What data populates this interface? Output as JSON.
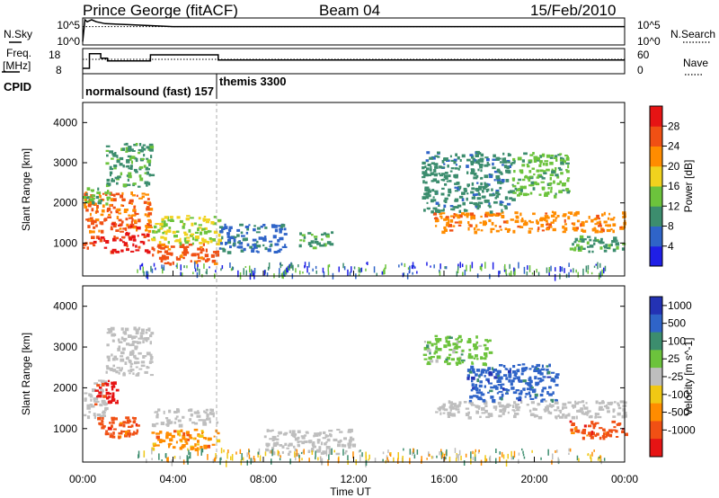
{
  "header": {
    "station": "Prince George (fitACF)",
    "beam": "Beam 04",
    "date": "15/Feb/2010"
  },
  "nsky_panel": {
    "label": "N.Sky",
    "left_ticks": [
      "10^5",
      "10^0"
    ],
    "right_ticks": [
      "10^5",
      "10^0"
    ],
    "right_label": "N.Search"
  },
  "freq_panel": {
    "label_line1": "Freq.",
    "label_line2": "[MHz]",
    "left_ticks": [
      "18",
      "8"
    ],
    "right_ticks": [
      "60",
      "0"
    ],
    "right_label": "Nave"
  },
  "cpid_panel": {
    "label": "CPID",
    "programs": [
      {
        "name": "normalsound (fast) 157",
        "start_hour": 0.0,
        "end_hour": 6.0
      },
      {
        "name": "themis 3300",
        "start_hour": 6.0,
        "end_hour": 24.0
      }
    ]
  },
  "x_axis": {
    "label": "Time UT",
    "ticks": [
      "00:00",
      "04:00",
      "08:00",
      "12:00",
      "16:00",
      "20:00",
      "00:00"
    ]
  },
  "y_axis": {
    "label": "Slant Range [km]",
    "ticks": [
      "1000",
      "2000",
      "3000",
      "4000"
    ]
  },
  "power_colorbar": {
    "label": "Power [dB]",
    "ticks": [
      "4",
      "8",
      "12",
      "16",
      "20",
      "24",
      "28"
    ],
    "colors": [
      "#1f1fe6",
      "#2f64c8",
      "#3c8d6e",
      "#6cc33c",
      "#f0d21e",
      "#ff8c00",
      "#f05014",
      "#e61414"
    ]
  },
  "velocity_colorbar": {
    "label": "Velocity [m s^-1]",
    "ticks": [
      "1000",
      "500",
      "100",
      "25",
      "-25",
      "-100",
      "-500",
      "-1000"
    ],
    "colors": [
      "#2332b4",
      "#2f64c8",
      "#3c8d6e",
      "#6cc33c",
      "#bebebe",
      "#f0c814",
      "#ff8c00",
      "#f05014",
      "#e61414"
    ]
  },
  "chart_data": [
    {
      "type": "line",
      "title": "N.Sky / N.Search",
      "series": [
        {
          "name": "N.Sky",
          "x": [
            0.0,
            0.1,
            0.2,
            0.4,
            0.6,
            1.0,
            2.0,
            3.0,
            4.0,
            5.0,
            6.0,
            8.0,
            10.0,
            12.0,
            14.0,
            16.0,
            18.0,
            20.0,
            22.0,
            24.0
          ],
          "y": [
            0.5,
            5.0,
            4.6,
            5.0,
            4.6,
            4.2,
            4.0,
            3.8,
            3.6,
            3.6,
            3.6,
            3.6,
            3.6,
            3.6,
            3.6,
            3.6,
            3.6,
            3.6,
            3.6,
            3.6
          ]
        },
        {
          "name": "N.Search",
          "x": [
            0.0,
            24.0
          ],
          "y": [
            3.6,
            3.6
          ]
        }
      ]
    },
    {
      "type": "line",
      "title": "Freq. [MHz] / Nave",
      "ylim": [
        8,
        18
      ],
      "series": [
        {
          "name": "Freq.",
          "x": [
            0.0,
            0.3,
            0.3,
            0.8,
            0.8,
            1.1,
            1.1,
            3.0,
            3.0,
            6.0,
            6.0,
            24.0
          ],
          "y": [
            10.0,
            10.0,
            16.5,
            16.5,
            14.5,
            14.5,
            13.3,
            13.3,
            16.0,
            16.0,
            13.7,
            13.7
          ]
        },
        {
          "name": "Nave",
          "x": [
            0.0,
            24.0
          ],
          "y": [
            14.0,
            14.0
          ]
        }
      ]
    },
    {
      "type": "heatmap",
      "title": "Power [dB]",
      "xlabel": "Time UT",
      "ylabel": "Slant Range [km]",
      "xlim": [
        0,
        24
      ],
      "ylim": [
        180,
        4500
      ],
      "clim": [
        0,
        30
      ],
      "regions": [
        {
          "t0": 0.0,
          "t1": 3.0,
          "r0": 1300,
          "r1": 2300,
          "value": 24
        },
        {
          "t0": 1.2,
          "t1": 2.9,
          "r0": 800,
          "r1": 1500,
          "value": 29
        },
        {
          "t0": 0.0,
          "t1": 1.0,
          "r0": 900,
          "r1": 1200,
          "value": 27
        },
        {
          "t0": 0.0,
          "t1": 1.2,
          "r0": 2000,
          "r1": 2400,
          "value": 12
        },
        {
          "t0": 1.0,
          "t1": 3.0,
          "r0": 2400,
          "r1": 3500,
          "value": 10
        },
        {
          "t0": 3.0,
          "t1": 6.0,
          "r0": 500,
          "r1": 1000,
          "value": 25
        },
        {
          "t0": 3.0,
          "t1": 6.0,
          "r0": 1000,
          "r1": 1700,
          "value": 15
        },
        {
          "t0": 6.0,
          "t1": 9.0,
          "r0": 800,
          "r1": 1500,
          "value": 6
        },
        {
          "t0": 9.5,
          "t1": 11.0,
          "r0": 900,
          "r1": 1300,
          "value": 10
        },
        {
          "t0": 15.5,
          "t1": 24.0,
          "r0": 1300,
          "r1": 1800,
          "value": 22
        },
        {
          "t0": 15.0,
          "t1": 19.0,
          "r0": 1800,
          "r1": 3300,
          "value": 8
        },
        {
          "t0": 19.0,
          "t1": 21.5,
          "r0": 2200,
          "r1": 3300,
          "value": 12
        },
        {
          "t0": 21.5,
          "t1": 24.0,
          "r0": 800,
          "r1": 1200,
          "value": 10
        }
      ]
    },
    {
      "type": "heatmap",
      "title": "Velocity [m s^-1]",
      "xlabel": "Time UT",
      "ylabel": "Slant Range [km]",
      "xlim": [
        0,
        24
      ],
      "ylim": [
        180,
        4500
      ],
      "clim": [
        -1000,
        1000
      ],
      "regions": [
        {
          "t0": 0.0,
          "t1": 1.0,
          "r0": 1300,
          "r1": 2200,
          "value": 0
        },
        {
          "t0": 0.5,
          "t1": 1.5,
          "r0": 1600,
          "r1": 2200,
          "value": -700
        },
        {
          "t0": 0.5,
          "t1": 2.5,
          "r0": 800,
          "r1": 1300,
          "value": -400
        },
        {
          "t0": 1.0,
          "t1": 3.0,
          "r0": 2300,
          "r1": 3500,
          "value": 0
        },
        {
          "t0": 3.0,
          "t1": 6.0,
          "r0": 500,
          "r1": 1000,
          "value": -200
        },
        {
          "t0": 3.0,
          "t1": 6.0,
          "r0": 1100,
          "r1": 1500,
          "value": 0
        },
        {
          "t0": 8.0,
          "t1": 12.0,
          "r0": 400,
          "r1": 1000,
          "value": 0
        },
        {
          "t0": 15.5,
          "t1": 24.0,
          "r0": 1300,
          "r1": 1700,
          "value": 0
        },
        {
          "t0": 17.0,
          "t1": 21.0,
          "r0": 1700,
          "r1": 2600,
          "value": 400
        },
        {
          "t0": 15.0,
          "t1": 18.0,
          "r0": 2600,
          "r1": 3300,
          "value": 50
        },
        {
          "t0": 21.5,
          "t1": 24.0,
          "r0": 800,
          "r1": 1200,
          "value": -300
        }
      ]
    }
  ]
}
